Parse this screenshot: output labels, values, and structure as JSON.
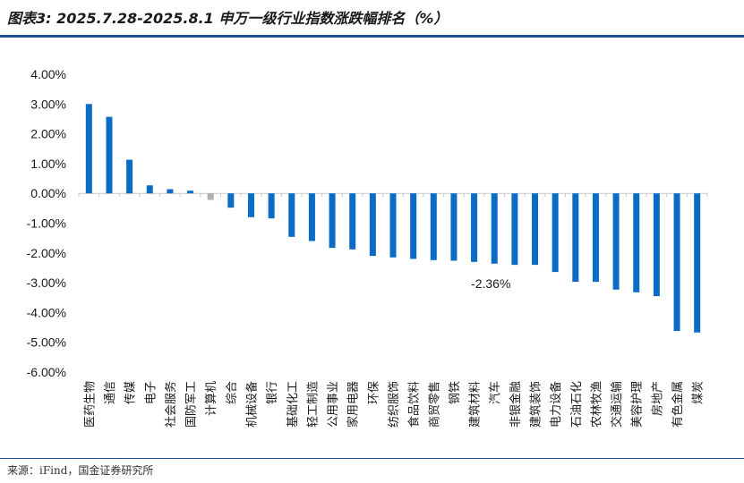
{
  "header": {
    "title": "图表3: 2025.7.28-2025.8.1 申万一级行业指数涨跌幅排名（%）"
  },
  "footer": {
    "source": "来源：iFind，国金证券研究所"
  },
  "colors": {
    "bar": "#0a6cc4",
    "bar_highlight": "#b0b0b0",
    "axis": "#c8c8c8",
    "rule": "#1e4e8c"
  },
  "chart_data": {
    "type": "bar",
    "title": "",
    "xlabel": "",
    "ylabel": "",
    "ylim": [
      -6,
      4
    ],
    "yticks": [
      4,
      3,
      2,
      1,
      0,
      -1,
      -2,
      -3,
      -4,
      -5,
      -6
    ],
    "ytick_labels": [
      "4.00%",
      "3.00%",
      "2.00%",
      "1.00%",
      "0.00%",
      "-1.00%",
      "-2.00%",
      "-3.00%",
      "-4.00%",
      "-5.00%",
      "-6.00%"
    ],
    "grid": false,
    "legend": "none",
    "categories": [
      "医药生物",
      "通信",
      "传媒",
      "电子",
      "社会服务",
      "国防军工",
      "计算机",
      "综合",
      "机械设备",
      "银行",
      "基础化工",
      "轻工制造",
      "公用事业",
      "家用电器",
      "环保",
      "纺织服饰",
      "食品饮料",
      "商贸零售",
      "钢铁",
      "建筑材料",
      "汽车",
      "非银金融",
      "建筑装饰",
      "电力设备",
      "石油石化",
      "农林牧渔",
      "交通运输",
      "美容护理",
      "房地产",
      "有色金属",
      "煤炭"
    ],
    "values": [
      3.0,
      2.57,
      1.13,
      0.27,
      0.14,
      0.09,
      -0.22,
      -0.48,
      -0.8,
      -0.84,
      -1.46,
      -1.6,
      -1.83,
      -1.88,
      -2.1,
      -2.15,
      -2.2,
      -2.24,
      -2.26,
      -2.3,
      -2.36,
      -2.4,
      -2.4,
      -2.64,
      -2.97,
      -2.97,
      -3.23,
      -3.32,
      -3.45,
      -4.62,
      -4.67
    ],
    "highlight_category": "计算机",
    "annotations": [
      {
        "category": "汽车",
        "text": "-2.36%"
      }
    ]
  }
}
